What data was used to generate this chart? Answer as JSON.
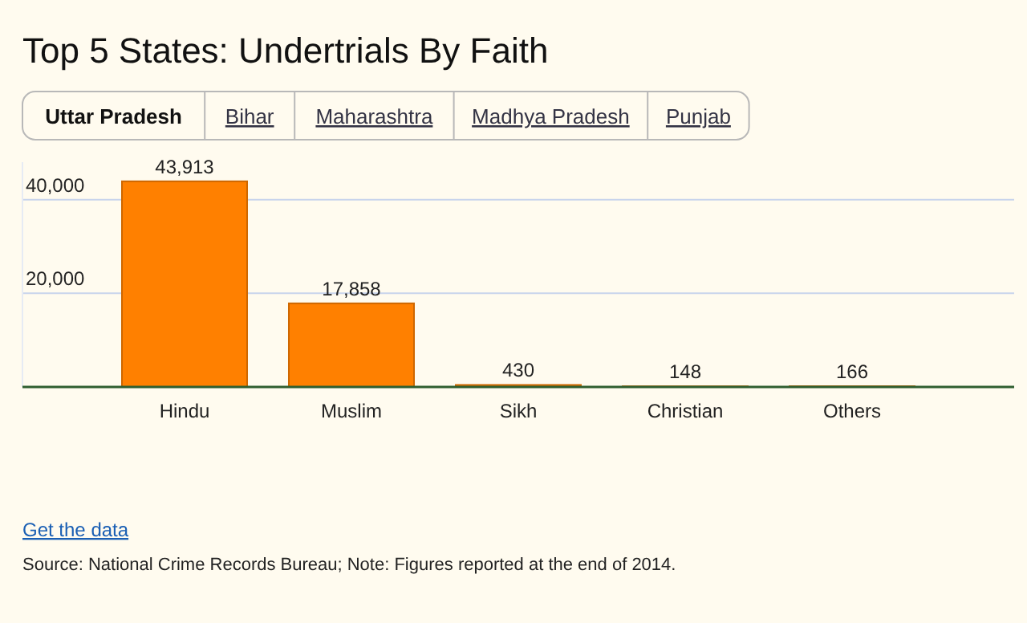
{
  "chart_data": {
    "type": "bar",
    "title": "Top 5 States: Undertrials By Faith",
    "categories": [
      "Hindu",
      "Muslim",
      "Sikh",
      "Christian",
      "Others"
    ],
    "values": [
      43913,
      17858,
      430,
      148,
      166
    ],
    "value_labels": [
      "43,913",
      "17,858",
      "430",
      "148",
      "166"
    ],
    "color": "#ff8000",
    "ylim": [
      0,
      48000
    ],
    "yticks": [
      {
        "value": 20000,
        "label": "20,000"
      },
      {
        "value": 40000,
        "label": "40,000"
      }
    ],
    "grid": "y",
    "annotations": [
      "Uttar Pradesh",
      "Bihar",
      "Maharashtra",
      "Madhya Pradesh",
      "Punjab",
      "Get the data",
      "Source: National Crime Records Bureau; Note: Figures reported at the end of 2014."
    ]
  }
}
